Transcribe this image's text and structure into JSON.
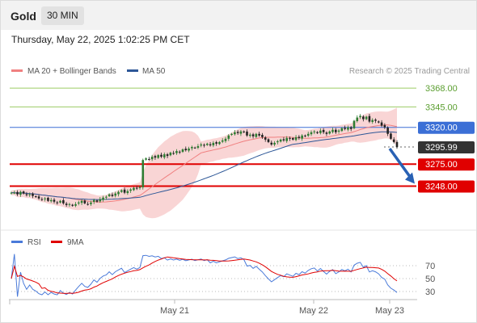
{
  "header": {
    "instrument": "Gold",
    "timeframe": "30 MIN",
    "datetime": "Thursday, May 22, 2025 1:02:25 PM CET"
  },
  "credit": "Research © 2025 Trading Central",
  "colors": {
    "ma20": "#f08080",
    "ma50": "#2d5797",
    "band_fill": "#f7c7c7",
    "up_candle": "#2e7d32",
    "down_candle": "#222222",
    "resistance_line": "#9ccc65",
    "pivot_line": "#3b6fd6",
    "support_line": "#e00000",
    "arrow": "#2961b4",
    "rsi": "#4a7ad9",
    "rsi_ma": "#e00000",
    "price_label": "#333333"
  },
  "chart_data": [
    {
      "type": "candlestick",
      "title": "",
      "legend": [
        {
          "name": "MA 20 + Bollinger Bands",
          "color": "#f08080"
        },
        {
          "name": "MA 50",
          "color": "#2d5797"
        }
      ],
      "legend_placement": "top-left",
      "y_range": [
        3210,
        3378
      ],
      "x_axis_labels": [
        "May 21",
        "May 22",
        "May 23"
      ],
      "levels": [
        {
          "value": 3368.0,
          "label": "3368.00",
          "role": "resistance",
          "color": "#9ccc65"
        },
        {
          "value": 3345.0,
          "label": "3345.00",
          "role": "resistance",
          "color": "#9ccc65"
        },
        {
          "value": 3320.0,
          "label": "3320.00",
          "role": "pivot",
          "color": "#3b6fd6"
        },
        {
          "value": 3295.99,
          "label": "3295.99",
          "role": "last_price",
          "color": "#333333"
        },
        {
          "value": 3275.0,
          "label": "3275.00",
          "role": "support",
          "color": "#e00000"
        },
        {
          "value": 3248.0,
          "label": "3248.00",
          "role": "support",
          "color": "#e00000"
        }
      ],
      "projection_arrow": {
        "from": 3295.99,
        "to": 3248.0,
        "direction": "down"
      },
      "closes": [
        3240,
        3240,
        3238,
        3241,
        3239,
        3237,
        3238,
        3236,
        3235,
        3233,
        3232,
        3233,
        3230,
        3231,
        3229,
        3228,
        3230,
        3227,
        3225,
        3226,
        3224,
        3226,
        3228,
        3230,
        3227,
        3226,
        3228,
        3231,
        3229,
        3232,
        3234,
        3235,
        3238,
        3236,
        3239,
        3241,
        3243,
        3240,
        3242,
        3244,
        3246,
        3245,
        3247,
        3280,
        3282,
        3281,
        3284,
        3283,
        3286,
        3284,
        3287,
        3285,
        3289,
        3288,
        3291,
        3290,
        3293,
        3292,
        3294,
        3296,
        3295,
        3297,
        3299,
        3298,
        3300,
        3298,
        3301,
        3300,
        3302,
        3304,
        3306,
        3310,
        3312,
        3314,
        3313,
        3315,
        3314,
        3310,
        3311,
        3309,
        3312,
        3310,
        3308,
        3305,
        3302,
        3299,
        3301,
        3303,
        3305,
        3304,
        3307,
        3306,
        3305,
        3308,
        3307,
        3310,
        3309,
        3312,
        3314,
        3315,
        3313,
        3316,
        3314,
        3312,
        3315,
        3317,
        3314,
        3316,
        3319,
        3318,
        3320,
        3318,
        3328,
        3332,
        3334,
        3330,
        3333,
        3327,
        3329,
        3328,
        3326,
        3322,
        3320,
        3312,
        3306,
        3302,
        3296
      ]
    },
    {
      "type": "line",
      "title": "",
      "series": [
        {
          "name": "RSI",
          "color": "#4a7ad9"
        },
        {
          "name": "9MA",
          "color": "#e00000"
        }
      ],
      "legend_placement": "top-left",
      "y_ticks": [
        70,
        50,
        30
      ],
      "y_range": [
        20,
        90
      ]
    }
  ]
}
